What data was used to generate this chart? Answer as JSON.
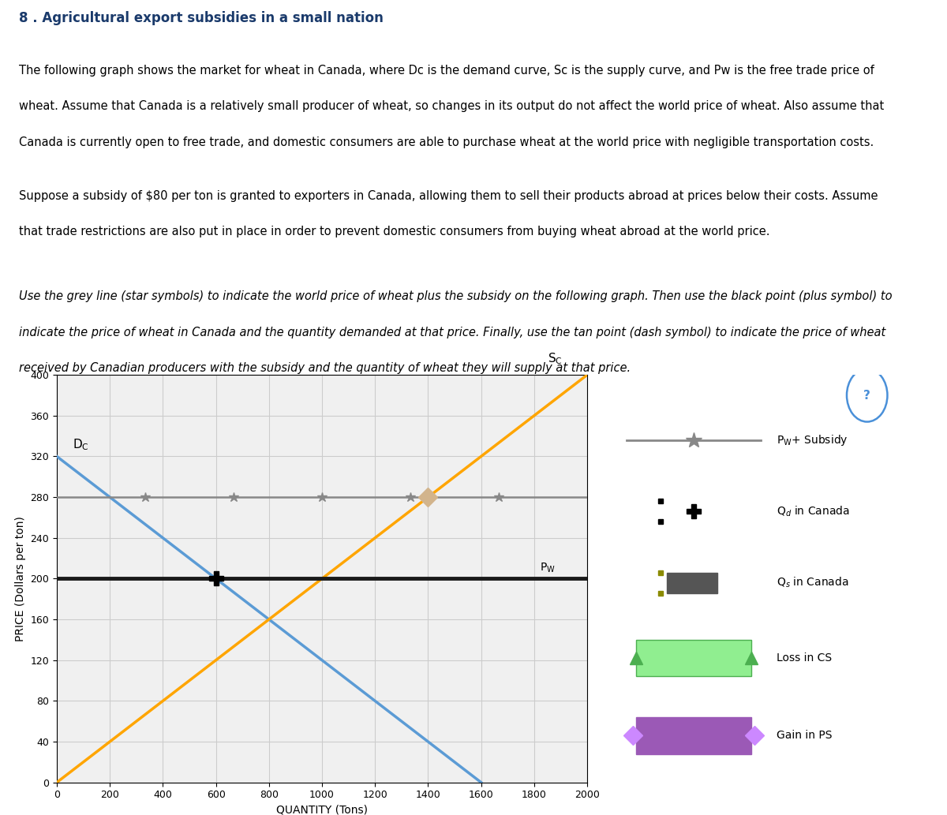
{
  "title_main": "8 . Agricultural export subsidies in a small nation",
  "p1_line1": "The following graph shows the market for wheat in Canada, where Dᴄ is the demand curve, Sᴄ is the supply curve, and Pᴡ is the free trade price of",
  "p1_line2": "wheat. Assume that Canada is a relatively small producer of wheat, so changes in its output do not affect the world price of wheat. Also assume that",
  "p1_line3": "Canada is currently open to free trade, and domestic consumers are able to purchase wheat at the world price with negligible transportation costs.",
  "p2_line1": "Suppose a subsidy of $80 per ton is granted to exporters in Canada, allowing them to sell their products abroad at prices below their costs. Assume",
  "p2_line2": "that trade restrictions are also put in place in order to prevent domestic consumers from buying wheat abroad at the world price.",
  "p3_line1": "Use the grey line (star symbols) to indicate the world price of wheat plus the subsidy on the following graph. Then use the black point (plus symbol) to",
  "p3_line2": "indicate the price of wheat in Canada and the quantity demanded at that price. Finally, use the tan point (dash symbol) to indicate the price of wheat",
  "p3_line3": "received by Canadian producers with the subsidy and the quantity of wheat they will supply at that price.",
  "Pw": 200,
  "subsidy": 80,
  "Pw_subsidy": 280,
  "dc_y_intercept": 320,
  "dc_x_intercept": 1600,
  "sc_x_at_pw": 1000,
  "dc_x_at_pw": 600,
  "sc_x_at_pw_subsidy": 1400,
  "xmin": 0,
  "xmax": 2000,
  "ymin": 0,
  "ymax": 400,
  "xticks": [
    0,
    200,
    400,
    600,
    800,
    1000,
    1200,
    1400,
    1600,
    1800,
    2000
  ],
  "yticks": [
    0,
    40,
    80,
    120,
    160,
    200,
    240,
    280,
    320,
    360,
    400
  ],
  "xlabel": "QUANTITY (Tons)",
  "ylabel": "PRICE (Dollars per ton)",
  "Sc_color": "#FFA500",
  "Dc_color": "#5B9BD5",
  "Pw_color": "#1a1a1a",
  "Pw_subsidy_line_color": "#888888",
  "tan_point_color": "#D2B48C",
  "green_fill_color": "#90EE90",
  "green_edge_color": "#4caf50",
  "purple_fill_color": "#9B59B6",
  "purple_edge_color": "#cc88ff",
  "bg_color": "#ffffff",
  "panel_bg": "#f0f0f0",
  "grid_color": "#cccccc",
  "legend_bg": "#f0f0f0",
  "title_color": "#1a3a6b"
}
